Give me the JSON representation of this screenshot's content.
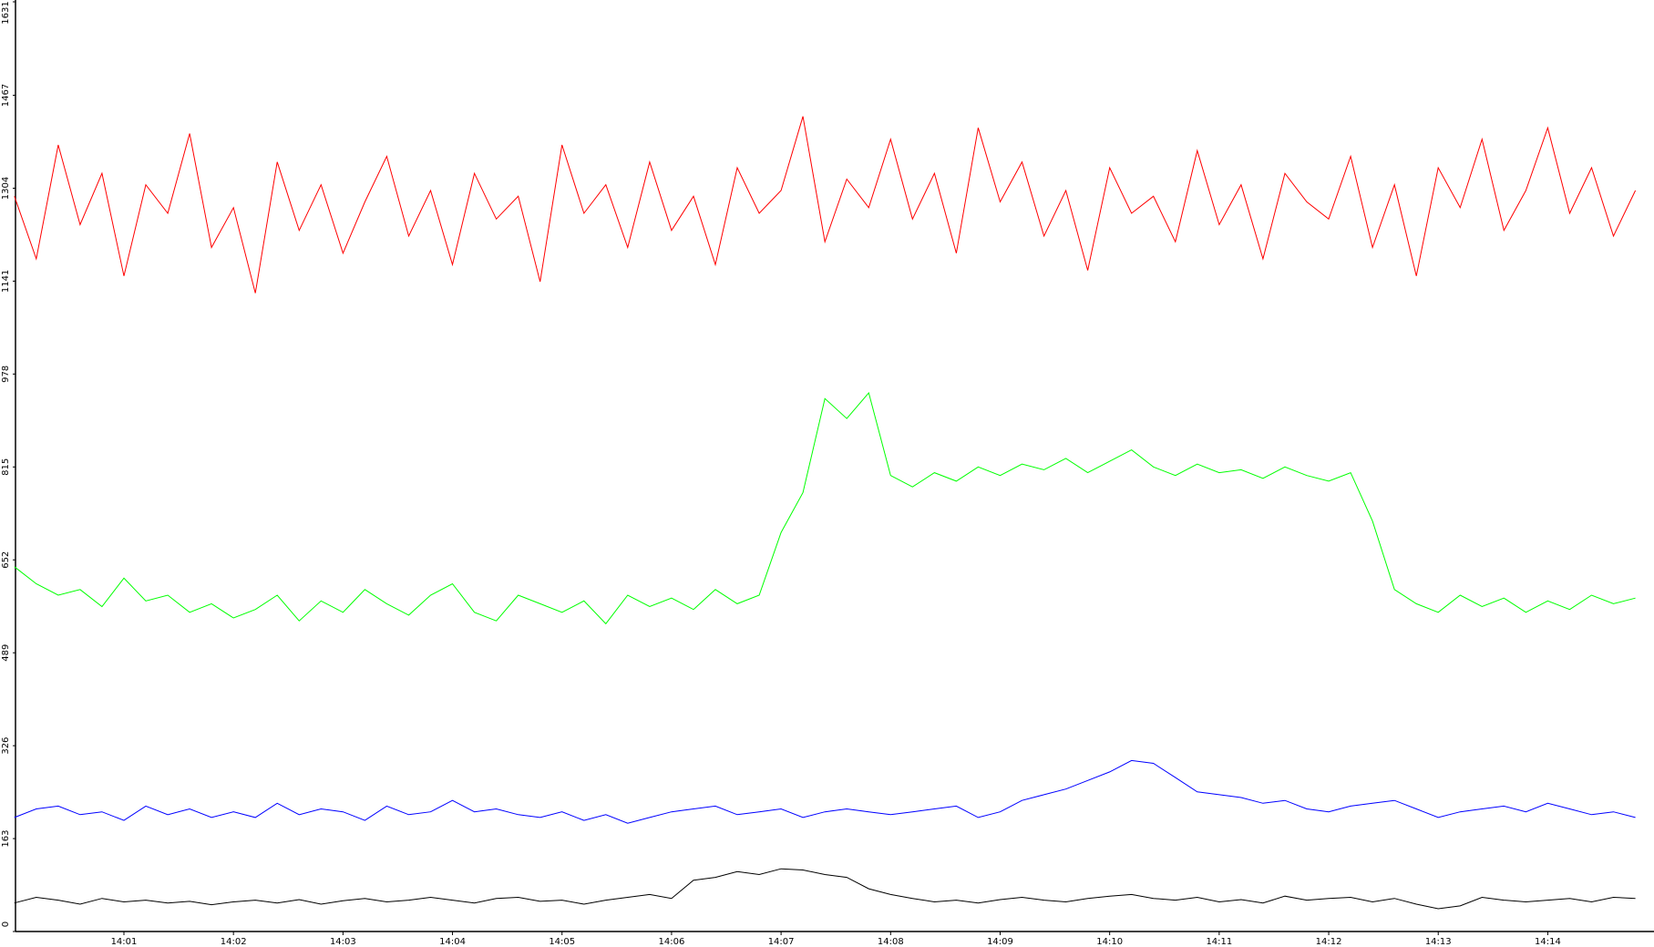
{
  "chart_data": {
    "type": "line",
    "x": [
      0,
      0.2,
      0.4,
      0.6,
      0.8,
      1,
      1.2,
      1.4,
      1.6,
      1.8,
      2,
      2.2,
      2.4,
      2.6,
      2.8,
      3,
      3.2,
      3.4,
      3.6,
      3.8,
      4,
      4.2,
      4.4,
      4.6,
      4.8,
      5,
      5.2,
      5.4,
      5.6,
      5.8,
      6,
      6.2,
      6.4,
      6.6,
      6.8,
      7,
      7.2,
      7.4,
      7.6,
      7.8,
      8,
      8.2,
      8.4,
      8.6,
      8.8,
      9,
      9.2,
      9.4,
      9.6,
      9.8,
      10,
      10.2,
      10.4,
      10.6,
      10.8,
      11,
      11.2,
      11.4,
      11.6,
      11.8,
      12,
      12.2,
      12.4,
      12.6,
      12.8,
      13,
      13.2,
      13.4,
      13.6,
      13.8,
      14,
      14.2,
      14.4,
      14.6,
      14.8
    ],
    "series": [
      {
        "color": "#ff0000",
        "values": [
          1290,
          1180,
          1380,
          1240,
          1330,
          1150,
          1310,
          1260,
          1400,
          1200,
          1270,
          1120,
          1350,
          1230,
          1310,
          1190,
          1280,
          1360,
          1220,
          1300,
          1170,
          1330,
          1250,
          1290,
          1140,
          1380,
          1260,
          1310,
          1200,
          1350,
          1230,
          1290,
          1170,
          1340,
          1260,
          1300,
          1430,
          1210,
          1320,
          1270,
          1390,
          1250,
          1330,
          1190,
          1410,
          1280,
          1350,
          1220,
          1300,
          1160,
          1340,
          1260,
          1290,
          1210,
          1370,
          1240,
          1310,
          1180,
          1330,
          1280,
          1250,
          1360,
          1200,
          1310,
          1150,
          1340,
          1270,
          1390,
          1230,
          1300,
          1410,
          1260,
          1340,
          1220,
          1300
        ]
      },
      {
        "color": "#00ff00",
        "values": [
          640,
          610,
          590,
          600,
          570,
          620,
          580,
          590,
          560,
          575,
          550,
          565,
          590,
          545,
          580,
          560,
          600,
          575,
          555,
          590,
          610,
          560,
          545,
          590,
          575,
          560,
          580,
          540,
          590,
          570,
          585,
          565,
          600,
          575,
          590,
          700,
          770,
          935,
          900,
          945,
          800,
          780,
          805,
          790,
          815,
          800,
          820,
          810,
          830,
          805,
          825,
          845,
          815,
          800,
          820,
          805,
          810,
          795,
          815,
          800,
          790,
          805,
          720,
          600,
          575,
          560,
          590,
          570,
          585,
          560,
          580,
          565,
          590,
          575,
          585
        ]
      },
      {
        "color": "#0000ff",
        "values": [
          200,
          215,
          220,
          205,
          210,
          195,
          220,
          205,
          215,
          200,
          210,
          200,
          225,
          205,
          215,
          210,
          195,
          220,
          205,
          210,
          230,
          210,
          215,
          205,
          200,
          210,
          195,
          205,
          190,
          200,
          210,
          215,
          220,
          205,
          210,
          215,
          200,
          210,
          215,
          210,
          205,
          210,
          215,
          220,
          200,
          210,
          230,
          240,
          250,
          265,
          280,
          300,
          295,
          270,
          245,
          240,
          235,
          225,
          230,
          215,
          210,
          220,
          225,
          230,
          215,
          200,
          210,
          215,
          220,
          210,
          225,
          215,
          205,
          210,
          200
        ]
      },
      {
        "color": "#000000",
        "values": [
          50,
          60,
          55,
          48,
          58,
          52,
          55,
          50,
          53,
          47,
          52,
          55,
          50,
          56,
          48,
          54,
          58,
          52,
          55,
          60,
          55,
          50,
          58,
          60,
          53,
          55,
          48,
          55,
          60,
          65,
          58,
          90,
          95,
          105,
          100,
          110,
          108,
          100,
          95,
          75,
          65,
          58,
          52,
          55,
          50,
          56,
          60,
          55,
          52,
          58,
          62,
          65,
          58,
          55,
          60,
          52,
          56,
          50,
          62,
          55,
          58,
          60,
          52,
          58,
          48,
          40,
          45,
          60,
          55,
          52,
          55,
          58,
          52,
          60,
          58
        ]
      }
    ],
    "xlim": [
      0.01,
      14.97
    ],
    "xticks": [
      {
        "value": 1,
        "label": "14:01"
      },
      {
        "value": 2,
        "label": "14:02"
      },
      {
        "value": 3,
        "label": "14:03"
      },
      {
        "value": 4,
        "label": "14:04"
      },
      {
        "value": 5,
        "label": "14:05"
      },
      {
        "value": 6,
        "label": "14:06"
      },
      {
        "value": 7,
        "label": "14:07"
      },
      {
        "value": 8,
        "label": "14:08"
      },
      {
        "value": 9,
        "label": "14:09"
      },
      {
        "value": 10,
        "label": "14:10"
      },
      {
        "value": 11,
        "label": "14:11"
      },
      {
        "value": 12,
        "label": "14:12"
      },
      {
        "value": 13,
        "label": "14:13"
      },
      {
        "value": 14,
        "label": "14:14"
      }
    ],
    "ylim": [
      0,
      1631
    ],
    "yticks": [
      0,
      163,
      326,
      489,
      652,
      815,
      978,
      1141,
      1304,
      1467,
      1631
    ]
  }
}
